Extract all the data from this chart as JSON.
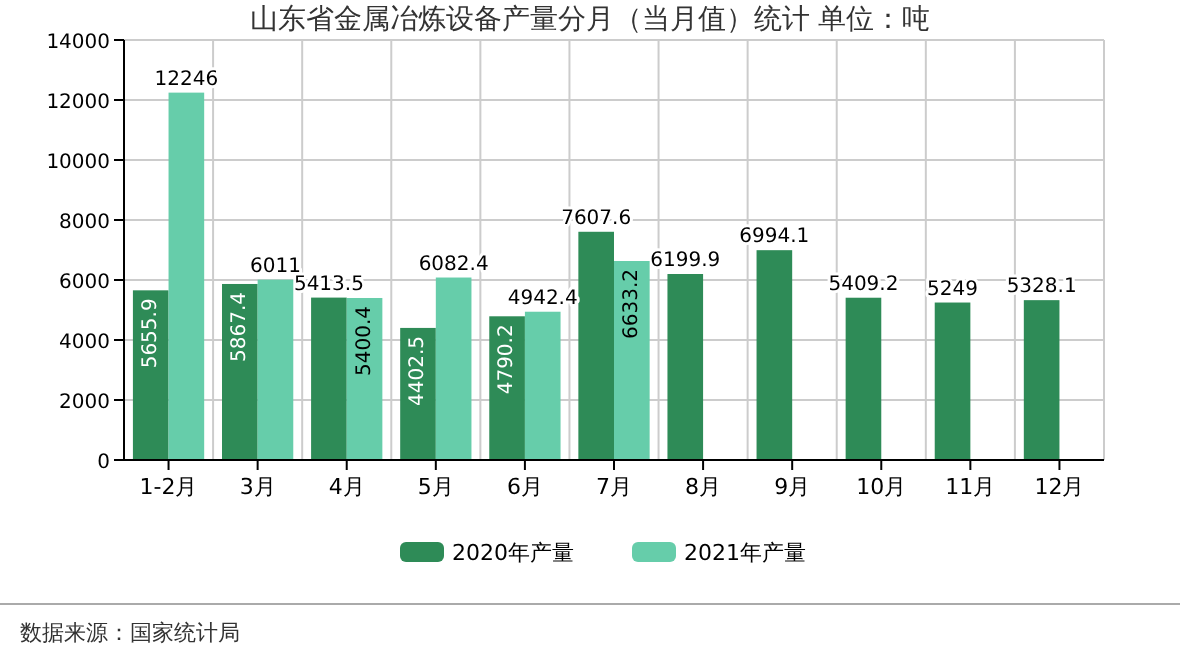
{
  "chart_data": {
    "type": "bar",
    "title": "山东省金属冶炼设备产量分月（当月值）统计 单位：吨",
    "categories": [
      "1-2月",
      "3月",
      "4月",
      "5月",
      "6月",
      "7月",
      "8月",
      "9月",
      "10月",
      "11月",
      "12月"
    ],
    "series": [
      {
        "name": "2020年产量",
        "color": "#2e8b57",
        "values": [
          5655.9,
          5867.4,
          5413.5,
          4402.5,
          4790.2,
          7607.6,
          6199.9,
          6994.1,
          5409.2,
          5249,
          5328.1
        ]
      },
      {
        "name": "2021年产量",
        "color": "#66cdaa",
        "values": [
          12246,
          6011,
          5400.4,
          6082.4,
          4942.4,
          6633.2,
          null,
          null,
          null,
          null,
          null
        ]
      }
    ],
    "ylim": [
      0,
      14000
    ],
    "yticks": [
      0,
      2000,
      4000,
      6000,
      8000,
      10000,
      12000,
      14000
    ],
    "grid": true,
    "legend": "bottom",
    "data_labels": true,
    "annotations": [
      "数据来源：国家统计局"
    ]
  }
}
